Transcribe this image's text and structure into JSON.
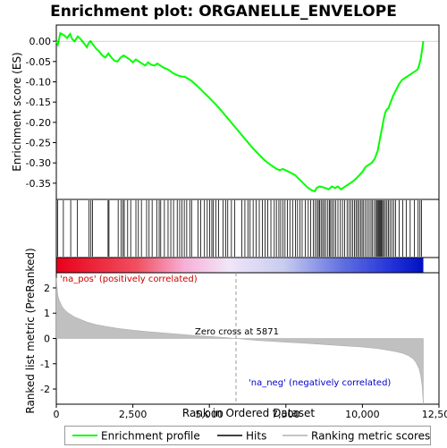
{
  "chart_data": {
    "type": "line",
    "title": "Enrichment plot: ORGANELLE_ENVELOPE",
    "top_panel": {
      "ylabel": "Enrichment score (ES)",
      "ylim": [
        -0.39,
        0.04
      ],
      "yticks": [
        0.0,
        -0.05,
        -0.1,
        -0.15,
        -0.2,
        -0.25,
        -0.3,
        -0.35
      ],
      "ytick_labels": [
        "0.00",
        "-0.05",
        "-0.10",
        "-0.15",
        "-0.20",
        "-0.25",
        "-0.30",
        "-0.35"
      ],
      "series": [
        {
          "name": "Enrichment profile",
          "color": "#00ff00",
          "x": [
            0,
            50,
            130,
            250,
            350,
            450,
            520,
            600,
            700,
            800,
            900,
            1000,
            1050,
            1120,
            1200,
            1300,
            1400,
            1500,
            1600,
            1700,
            1750,
            1800,
            1900,
            2000,
            2100,
            2200,
            2300,
            2400,
            2500,
            2600,
            2700,
            2800,
            2900,
            3000,
            3100,
            3200,
            3300,
            3400,
            3500,
            3600,
            3700,
            3800,
            3900,
            4000,
            4100,
            4200,
            4300,
            4400,
            4600,
            4800,
            5000,
            5200,
            5400,
            5600,
            5800,
            6000,
            6200,
            6400,
            6600,
            6800,
            7000,
            7200,
            7300,
            7400,
            7600,
            7800,
            8000,
            8200,
            8350,
            8450,
            8500,
            8600,
            8700,
            8800,
            8900,
            9000,
            9050,
            9100,
            9200,
            9300,
            9400,
            9500,
            9600,
            9700,
            9800,
            9900,
            10000,
            10100,
            10200,
            10300,
            10400,
            10500,
            10550,
            10600,
            10650,
            10700,
            10750,
            10800,
            10850,
            10900,
            11000,
            11100,
            11200,
            11300,
            11400,
            11500,
            11600,
            11700,
            11800,
            11850,
            11900,
            11950,
            11990
          ],
          "y": [
            0.0,
            -0.008,
            0.02,
            0.015,
            0.008,
            0.018,
            0.005,
            0.0,
            0.012,
            0.005,
            -0.005,
            -0.015,
            -0.005,
            0.0,
            -0.008,
            -0.018,
            -0.025,
            -0.035,
            -0.04,
            -0.03,
            -0.035,
            -0.04,
            -0.048,
            -0.05,
            -0.04,
            -0.035,
            -0.04,
            -0.045,
            -0.052,
            -0.045,
            -0.05,
            -0.055,
            -0.06,
            -0.052,
            -0.058,
            -0.06,
            -0.055,
            -0.06,
            -0.065,
            -0.068,
            -0.072,
            -0.078,
            -0.082,
            -0.085,
            -0.087,
            -0.088,
            -0.092,
            -0.097,
            -0.11,
            -0.125,
            -0.14,
            -0.155,
            -0.172,
            -0.19,
            -0.208,
            -0.226,
            -0.244,
            -0.262,
            -0.278,
            -0.293,
            -0.305,
            -0.315,
            -0.318,
            -0.315,
            -0.322,
            -0.33,
            -0.345,
            -0.36,
            -0.368,
            -0.37,
            -0.362,
            -0.358,
            -0.36,
            -0.362,
            -0.365,
            -0.358,
            -0.36,
            -0.362,
            -0.358,
            -0.365,
            -0.36,
            -0.355,
            -0.35,
            -0.345,
            -0.338,
            -0.33,
            -0.322,
            -0.31,
            -0.305,
            -0.3,
            -0.29,
            -0.27,
            -0.25,
            -0.23,
            -0.21,
            -0.19,
            -0.175,
            -0.168,
            -0.165,
            -0.155,
            -0.135,
            -0.12,
            -0.105,
            -0.095,
            -0.09,
            -0.085,
            -0.08,
            -0.075,
            -0.07,
            -0.06,
            -0.045,
            -0.02,
            0.0
          ]
        }
      ]
    },
    "hits_panel": {
      "series_name": "Hits",
      "hit_ranks": [
        40,
        230,
        470,
        690,
        1070,
        1130,
        1180,
        1690,
        1720,
        2020,
        2120,
        2180,
        2220,
        2330,
        2430,
        2600,
        2680,
        2780,
        2950,
        3030,
        3130,
        3280,
        3360,
        3410,
        3530,
        3650,
        3740,
        3830,
        3950,
        4030,
        4100,
        4180,
        4260,
        4360,
        4420,
        4630,
        4720,
        4840,
        4930,
        5010,
        5080,
        5130,
        5210,
        5300,
        5450,
        5530,
        5600,
        5720,
        5830,
        6060,
        6160,
        6260,
        6330,
        6430,
        6530,
        6630,
        6730,
        6820,
        6910,
        7010,
        7120,
        7190,
        7270,
        7330,
        7400,
        7470,
        7550,
        7630,
        7720,
        7810,
        7880,
        7960,
        8030,
        8130,
        8230,
        8310,
        8400,
        8460,
        8520,
        8560,
        8600,
        8650,
        8700,
        8750,
        8800,
        8870,
        8920,
        8960,
        9010,
        9070,
        9130,
        9200,
        9280,
        9350,
        9420,
        9500,
        9560,
        9620,
        9680,
        9740,
        9790,
        9840,
        9890,
        9940,
        9990,
        10040,
        10100,
        10160,
        10220,
        10280,
        10330,
        10390,
        10440,
        10480,
        10510,
        10540,
        10570,
        10600,
        10630,
        10660,
        10700,
        10750,
        10800,
        10850,
        10900,
        10960,
        11020,
        11080,
        11200,
        11320,
        11430,
        11560,
        11700,
        11820,
        11880,
        11930
      ]
    },
    "rank_panel": {
      "ylabel": "Ranked list metric (PreRanked)",
      "xlabel": "Rank in Ordered Dataset",
      "ylim": [
        -2.6,
        2.6
      ],
      "yticks": [
        2,
        1,
        0,
        -1,
        -2
      ],
      "ytick_labels": [
        "2",
        "1",
        "0",
        "-1",
        "-2"
      ],
      "xlim": [
        0,
        12500
      ],
      "xticks": [
        0,
        2500,
        5000,
        7500,
        10000,
        12500
      ],
      "xtick_labels": [
        "0",
        "2,500",
        "5,000",
        "7,500",
        "10,000",
        "12,500"
      ],
      "metric_x": [
        0,
        50,
        100,
        200,
        300,
        400,
        600,
        800,
        1000,
        1300,
        1600,
        2000,
        2500,
        3000,
        3500,
        4000,
        4500,
        5000,
        5500,
        5871,
        6200,
        6600,
        7000,
        7500,
        8000,
        8500,
        9000,
        9500,
        10000,
        10500,
        11000,
        11300,
        11500,
        11650,
        11750,
        11850,
        11900,
        11950,
        11990
      ],
      "metric_y": [
        2.4,
        1.7,
        1.5,
        1.25,
        1.1,
        1.0,
        0.85,
        0.75,
        0.65,
        0.55,
        0.48,
        0.4,
        0.33,
        0.27,
        0.22,
        0.17,
        0.12,
        0.08,
        0.04,
        0.0,
        -0.04,
        -0.08,
        -0.11,
        -0.15,
        -0.18,
        -0.22,
        -0.26,
        -0.3,
        -0.34,
        -0.4,
        -0.5,
        -0.58,
        -0.68,
        -0.8,
        -0.95,
        -1.2,
        -1.45,
        -1.9,
        -2.6
      ],
      "zero_cross_rank": 5871,
      "zero_cross_label": "Zero cross at 5871",
      "pos_label": "'na_pos' (positively correlated)",
      "neg_label": "'na_neg' (negatively correlated)"
    },
    "legend": {
      "entries": [
        {
          "label": "Enrichment profile",
          "color": "#00ff00"
        },
        {
          "label": "Hits",
          "color": "#000000"
        },
        {
          "label": "Ranking metric scores",
          "color": "#b0b0b0"
        }
      ]
    },
    "colors": {
      "pos_label": "#cc0000",
      "neg_label": "#0000cc",
      "metric_fill": "#c0c0c0"
    }
  }
}
